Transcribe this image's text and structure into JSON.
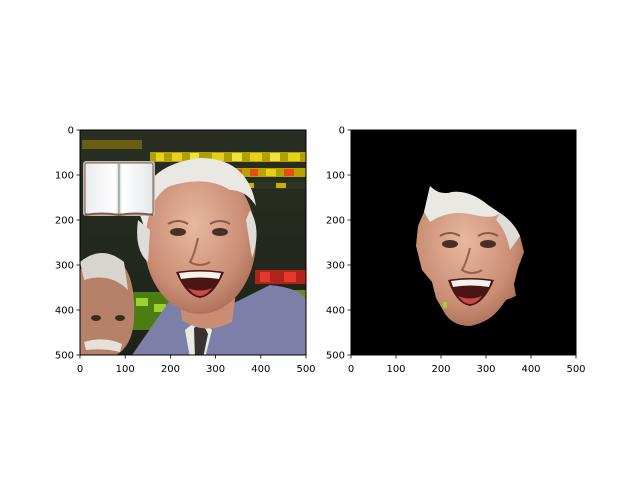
{
  "figure": {
    "background": "#ffffff",
    "axis_color": "#000000"
  },
  "chart_data": [
    {
      "type": "image",
      "title": "",
      "xlabel": "",
      "ylabel": "",
      "xlim": [
        0,
        500
      ],
      "ylim": [
        500,
        0
      ],
      "x_ticks": [
        "0",
        "100",
        "200",
        "300",
        "400",
        "500"
      ],
      "y_ticks": [
        "0",
        "100",
        "200",
        "300",
        "400",
        "500"
      ],
      "grid": false,
      "content": "photo of a smiling white-haired man in a trading room with a small open-book icon overlay at the top-left",
      "overlay_icon": "open-book-icon"
    },
    {
      "type": "image",
      "title": "",
      "xlabel": "",
      "ylabel": "",
      "xlim": [
        0,
        500
      ],
      "ylim": [
        500,
        0
      ],
      "x_ticks": [
        "0",
        "100",
        "200",
        "300",
        "400",
        "500"
      ],
      "y_ticks": [
        "0",
        "100",
        "200",
        "300",
        "400",
        "500"
      ],
      "grid": false,
      "content": "segmented face of the same man on a black background",
      "background": "#000000"
    }
  ]
}
